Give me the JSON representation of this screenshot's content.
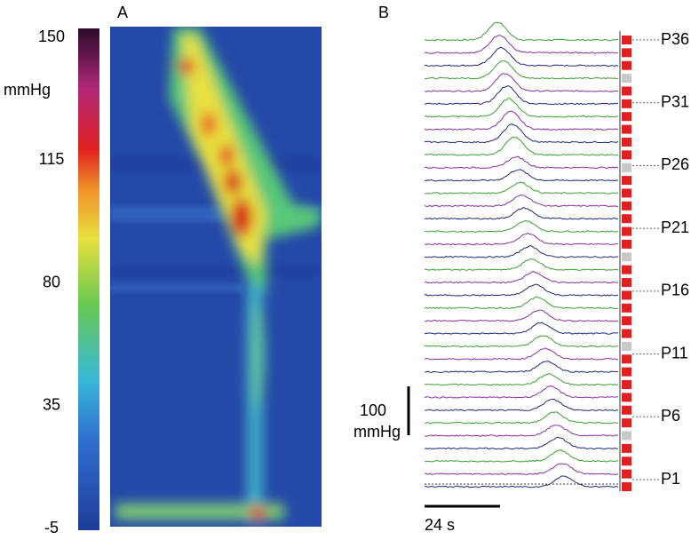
{
  "panel_a": {
    "label": "A",
    "colorbar": {
      "unit": "mmHg",
      "ticks": [
        150,
        115,
        80,
        35,
        -5
      ]
    }
  },
  "panel_b": {
    "label": "B",
    "channels": [
      "P36",
      "P31",
      "P26",
      "P21",
      "P16",
      "P11",
      "P6",
      "P1"
    ],
    "scale_bar": {
      "pressure_value": 100,
      "pressure_unit": "mmHg",
      "time": "24 s"
    }
  }
}
